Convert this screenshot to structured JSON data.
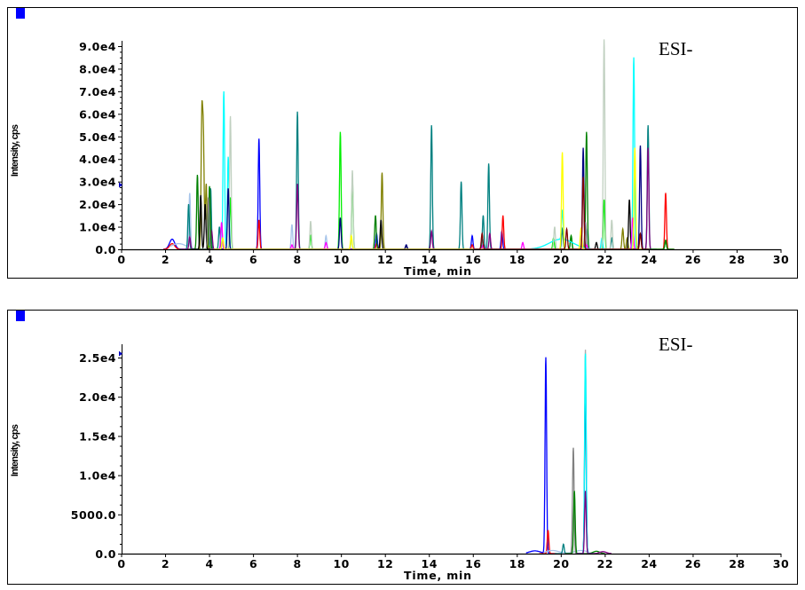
{
  "chart_data": [
    {
      "type": "line",
      "annotation": "ESI-",
      "xlabel": "Time, min",
      "ylabel": "Intensity, cps",
      "xlim": [
        0,
        30
      ],
      "ylim": [
        0,
        90000
      ],
      "xticks": [
        "0",
        "2",
        "4",
        "6",
        "8",
        "10",
        "12",
        "14",
        "16",
        "18",
        "20",
        "22",
        "24",
        "26",
        "28",
        "30"
      ],
      "yticks": [
        {
          "v": 0,
          "label": "0.0"
        },
        {
          "v": 10000,
          "label": "1.0e4"
        },
        {
          "v": 20000,
          "label": "2.0e4"
        },
        {
          "v": 30000,
          "label": "3.0e4"
        },
        {
          "v": 40000,
          "label": "4.0e4"
        },
        {
          "v": 50000,
          "label": "5.0e4"
        },
        {
          "v": 60000,
          "label": "6.0e4"
        },
        {
          "v": 70000,
          "label": "7.0e4"
        },
        {
          "v": 80000,
          "label": "8.0e4"
        },
        {
          "v": 90000,
          "label": "9.0e4"
        }
      ],
      "marker_value": 28500,
      "series": [
        {
          "name": "blue",
          "color": "#0000ff",
          "peaks": [
            [
              2.3,
              4500,
              0.12
            ],
            [
              6.25,
              49000
            ],
            [
              11.6,
              7000
            ],
            [
              15.95,
              6000
            ],
            [
              17.3,
              8000
            ]
          ]
        },
        {
          "name": "red",
          "color": "#ff0000",
          "peaks": [
            [
              2.3,
              2500,
              0.12
            ],
            [
              6.25,
              13000
            ],
            [
              11.6,
              2500
            ],
            [
              15.95,
              2000
            ],
            [
              17.35,
              15000
            ],
            [
              24.75,
              25000
            ]
          ]
        },
        {
          "name": "lightsteelblue",
          "color": "#a6c4ea",
          "peaks": [
            [
              2.6,
              2500,
              0.35
            ],
            [
              3.1,
              24000
            ],
            [
              7.75,
              11000
            ],
            [
              9.3,
              6000
            ],
            [
              21.2,
              9000
            ]
          ]
        },
        {
          "name": "teal",
          "color": "#008080",
          "peaks": [
            [
              3.05,
              20000
            ],
            [
              4.05,
              27000
            ],
            [
              4.45,
              10000
            ],
            [
              8.0,
              61000
            ],
            [
              14.1,
              55000
            ],
            [
              15.45,
              30000
            ],
            [
              16.45,
              15000
            ],
            [
              16.7,
              38000
            ],
            [
              20.05,
              9000
            ],
            [
              22.3,
              5000
            ],
            [
              23.95,
              55000
            ]
          ]
        },
        {
          "name": "purple",
          "color": "#800080",
          "peaks": [
            [
              3.1,
              5500
            ],
            [
              4.1,
              8000
            ],
            [
              8.0,
              29000
            ],
            [
              14.1,
              8000
            ],
            [
              16.75,
              7000
            ],
            [
              23.95,
              45000
            ]
          ]
        },
        {
          "name": "green",
          "color": "#00ee00",
          "peaks": [
            [
              4.0,
              1500
            ],
            [
              4.95,
              23000
            ],
            [
              8.6,
              6000
            ],
            [
              9.95,
              52000
            ],
            [
              10.5,
              31000
            ],
            [
              19.65,
              5000
            ],
            [
              20.45,
              6000
            ],
            [
              21.95,
              22000
            ],
            [
              24.75,
              4000
            ]
          ]
        },
        {
          "name": "darkgreen",
          "color": "#008000",
          "peaks": [
            [
              3.45,
              33000
            ],
            [
              4.0,
              28000
            ],
            [
              11.55,
              15000
            ],
            [
              20.45,
              6000
            ],
            [
              21.15,
              52000
            ],
            [
              24.75,
              4000
            ]
          ]
        },
        {
          "name": "olive",
          "color": "#808000",
          "peaks": [
            [
              3.65,
              57000
            ],
            [
              3.72,
              48000
            ],
            [
              3.85,
              29000
            ],
            [
              11.85,
              34000
            ],
            [
              22.8,
              9000
            ],
            [
              23.0,
              5000
            ]
          ]
        },
        {
          "name": "black",
          "color": "#000000",
          "peaks": [
            [
              3.6,
              24000
            ],
            [
              3.8,
              20000
            ],
            [
              11.8,
              13000
            ],
            [
              12.95,
              1500
            ],
            [
              21.6,
              3000
            ],
            [
              23.1,
              22000
            ]
          ]
        },
        {
          "name": "gray",
          "color": "#808080",
          "peaks": [
            [
              3.95,
              23000
            ],
            [
              21.1,
              12000
            ]
          ]
        },
        {
          "name": "cyan",
          "color": "#00ffff",
          "peaks": [
            [
              4.65,
              70000
            ],
            [
              4.85,
              41000
            ],
            [
              20.0,
              4500,
              0.55
            ],
            [
              20.05,
              13000
            ],
            [
              21.85,
              5000
            ],
            [
              23.3,
              85000
            ]
          ]
        },
        {
          "name": "silver",
          "color": "#c0d0c0",
          "peaks": [
            [
              4.95,
              59000
            ],
            [
              8.6,
              12500
            ],
            [
              10.5,
              35000
            ],
            [
              19.7,
              10000
            ],
            [
              21.95,
              93000
            ],
            [
              22.3,
              13000
            ]
          ]
        },
        {
          "name": "navy",
          "color": "#000080",
          "peaks": [
            [
              4.85,
              27000
            ],
            [
              9.95,
              14000
            ],
            [
              12.95,
              2000
            ],
            [
              21.0,
              45000
            ],
            [
              23.6,
              46000
            ]
          ]
        },
        {
          "name": "magenta",
          "color": "#ff00ff",
          "peaks": [
            [
              4.55,
              12000
            ],
            [
              7.75,
              2000
            ],
            [
              9.3,
              3000
            ],
            [
              16.45,
              2000
            ],
            [
              18.25,
              3000
            ],
            [
              21.15,
              2000
            ],
            [
              23.25,
              14000
            ]
          ]
        },
        {
          "name": "yellow",
          "color": "#ffff00",
          "peaks": [
            [
              4.6,
              5000
            ],
            [
              10.45,
              6000
            ],
            [
              20.05,
              43000
            ],
            [
              20.9,
              9000
            ],
            [
              23.35,
              45000
            ]
          ]
        },
        {
          "name": "darkred",
          "color": "#800000",
          "peaks": [
            [
              16.4,
              7000
            ],
            [
              20.25,
              9000
            ],
            [
              21.0,
              32000
            ],
            [
              23.6,
              7000
            ]
          ]
        }
      ]
    },
    {
      "type": "line",
      "annotation": "ESI-",
      "xlabel": "Time, min",
      "ylabel": "Intensity, cps",
      "xlim": [
        0,
        30
      ],
      "ylim": [
        0,
        25000
      ],
      "xticks": [
        "0",
        "2",
        "4",
        "6",
        "8",
        "10",
        "12",
        "14",
        "16",
        "18",
        "20",
        "22",
        "24",
        "26",
        "28",
        "30"
      ],
      "yticks": [
        {
          "v": 0,
          "label": "0.0"
        },
        {
          "v": 5000,
          "label": "5000.0"
        },
        {
          "v": 10000,
          "label": "1.0e4"
        },
        {
          "v": 15000,
          "label": "1.5e4"
        },
        {
          "v": 20000,
          "label": "2.0e4"
        },
        {
          "v": 25000,
          "label": "2.5e4"
        }
      ],
      "marker_value": 25500,
      "series": [
        {
          "name": "blue",
          "color": "#0000ff",
          "peaks": [
            [
              18.8,
              350,
              0.25
            ],
            [
              19.3,
              25000
            ]
          ]
        },
        {
          "name": "red",
          "color": "#ff0000",
          "peaks": [
            [
              19.4,
              3000
            ]
          ]
        },
        {
          "name": "lightsteelblue",
          "color": "#a6c4ea",
          "peaks": [
            [
              19.6,
              400,
              0.3
            ],
            [
              20.9,
              400,
              0.3
            ]
          ]
        },
        {
          "name": "teal",
          "color": "#008080",
          "peaks": [
            [
              20.1,
              1200
            ]
          ]
        },
        {
          "name": "gray",
          "color": "#808080",
          "peaks": [
            [
              20.55,
              13500
            ]
          ]
        },
        {
          "name": "darkgreen",
          "color": "#008000",
          "peaks": [
            [
              20.6,
              8000
            ],
            [
              21.6,
              300,
              0.15
            ]
          ]
        },
        {
          "name": "silver",
          "color": "#aaaaaa",
          "peaks": [
            [
              21.1,
              26000
            ]
          ]
        },
        {
          "name": "navy",
          "color": "#000080",
          "peaks": [
            [
              21.1,
              22000
            ]
          ]
        },
        {
          "name": "cyan",
          "color": "#00ffff",
          "peaks": [
            [
              21.1,
              25500
            ]
          ]
        },
        {
          "name": "purple",
          "color": "#800080",
          "peaks": [
            [
              21.1,
              8000
            ],
            [
              21.9,
              250,
              0.15
            ]
          ]
        }
      ]
    }
  ]
}
